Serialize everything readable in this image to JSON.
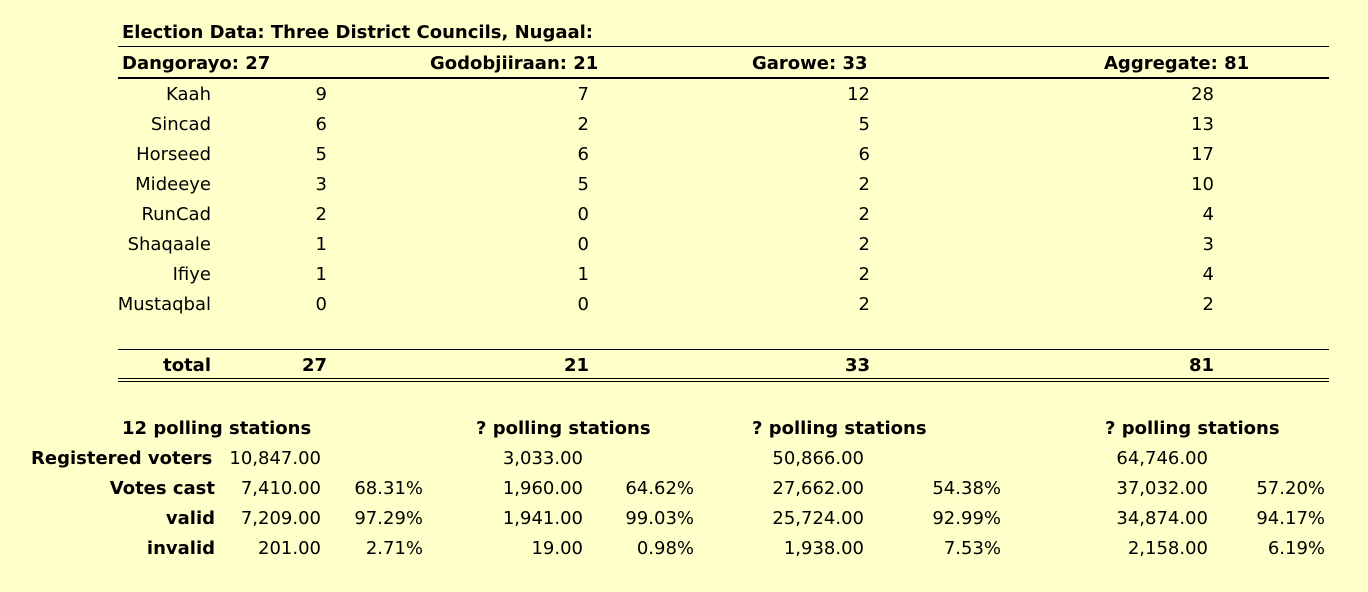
{
  "title": "Election Data: Three District Councils, Nugaal:",
  "headers": [
    "Dangorayo: 27",
    "Godobjiiraan: 21",
    "Garowe: 33",
    "Aggregate: 81"
  ],
  "parties": [
    {
      "name": "Kaah",
      "values": [
        "9",
        "7",
        "12",
        "28"
      ]
    },
    {
      "name": "Sincad",
      "values": [
        "6",
        "2",
        "5",
        "13"
      ]
    },
    {
      "name": "Horseed",
      "values": [
        "5",
        "6",
        "6",
        "17"
      ]
    },
    {
      "name": "Mideeye",
      "values": [
        "3",
        "5",
        "2",
        "10"
      ]
    },
    {
      "name": "RunCad",
      "values": [
        "2",
        "0",
        "2",
        "4"
      ]
    },
    {
      "name": "Shaqaale",
      "values": [
        "1",
        "0",
        "2",
        "3"
      ]
    },
    {
      "name": "Ifiye",
      "values": [
        "1",
        "1",
        "2",
        "4"
      ]
    },
    {
      "name": "Mustaqbal",
      "values": [
        "0",
        "0",
        "2",
        "2"
      ]
    }
  ],
  "total": {
    "label": "total",
    "values": [
      "27",
      "21",
      "33",
      "81"
    ]
  },
  "polling": [
    "12 polling stations",
    "? polling stations",
    "? polling stations",
    "? polling stations"
  ],
  "registered": {
    "label": "Registered voters",
    "values": [
      "10,847.00",
      "3,033.00",
      "50,866.00",
      "64,746.00"
    ]
  },
  "stats": [
    {
      "label": "Votes cast",
      "values": [
        "7,410.00",
        "1,960.00",
        "27,662.00",
        "37,032.00"
      ],
      "pcts": [
        "68.31%",
        "64.62%",
        "54.38%",
        "57.20%"
      ]
    },
    {
      "label": "valid",
      "values": [
        "7,209.00",
        "1,941.00",
        "25,724.00",
        "34,874.00"
      ],
      "pcts": [
        "97.29%",
        "99.03%",
        "92.99%",
        "94.17%"
      ]
    },
    {
      "label": "invalid",
      "values": [
        "201.00",
        "19.00",
        "1,938.00",
        "2,158.00"
      ],
      "pcts": [
        "2.71%",
        "0.98%",
        "7.53%",
        "6.19%"
      ]
    }
  ]
}
